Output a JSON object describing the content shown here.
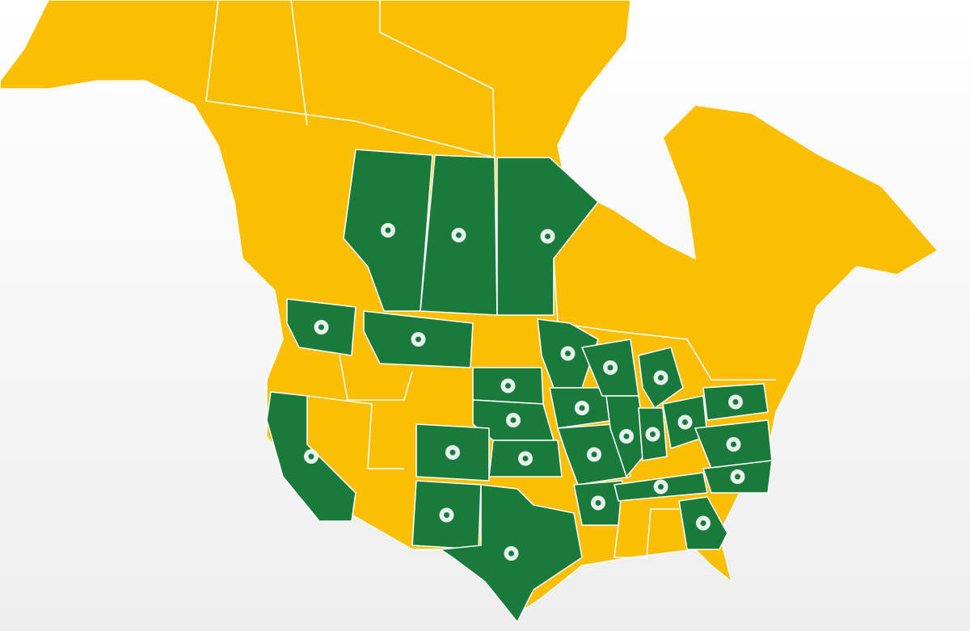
{
  "map": {
    "land_color": "#fbbe00",
    "highlight_color": "#1a7a3c",
    "border_color": "#ffffff"
  }
}
